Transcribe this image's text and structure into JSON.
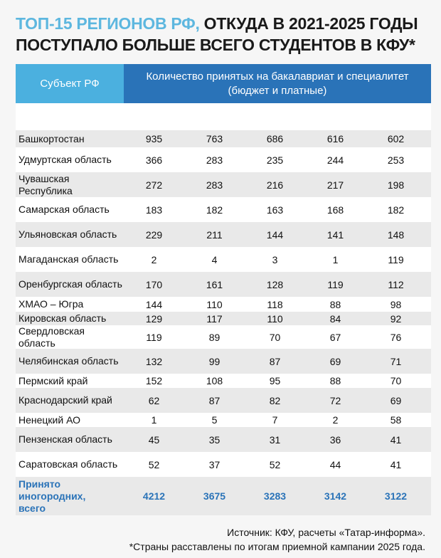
{
  "title": {
    "highlight": "ТОП-15 РЕГИОНОВ РФ,",
    "rest_line1": " ОТКУДА В 2021-2025 ГОДЫ",
    "line2": "ПОСТУПАЛО БОЛЬШЕ ВСЕГО СТУДЕНТОВ В КФУ*"
  },
  "table": {
    "header_subject": "Субъект РФ",
    "header_values": "Количество принятых на бакалавриат и специалитет (бюджет и платные)",
    "rows": [
      {
        "name": "Башкортостан",
        "values": [
          "935",
          "763",
          "686",
          "616",
          "602"
        ]
      },
      {
        "name": "Удмуртская область",
        "values": [
          "366",
          "283",
          "235",
          "244",
          "253"
        ]
      },
      {
        "name": "Чувашская Республика",
        "values": [
          "272",
          "283",
          "216",
          "217",
          "198"
        ]
      },
      {
        "name": "Самарская область",
        "values": [
          "183",
          "182",
          "163",
          "168",
          "182"
        ]
      },
      {
        "name": "Ульяновская область",
        "values": [
          "229",
          "211",
          "144",
          "141",
          "148"
        ]
      },
      {
        "name": "Магаданская область",
        "values": [
          "2",
          "4",
          "3",
          "1",
          "119"
        ]
      },
      {
        "name": "Оренбургская область",
        "values": [
          "170",
          "161",
          "128",
          "119",
          "112"
        ]
      },
      {
        "name": "ХМАО – Югра",
        "values": [
          "144",
          "110",
          "118",
          "88",
          "98"
        ]
      },
      {
        "name": "Кировская область",
        "values": [
          "129",
          "117",
          "110",
          "84",
          "92"
        ]
      },
      {
        "name": "Свердловская область",
        "values": [
          "119",
          "89",
          "70",
          "67",
          "76"
        ]
      },
      {
        "name": "Челябинская область",
        "values": [
          "132",
          "99",
          "87",
          "69",
          "71"
        ]
      },
      {
        "name": "Пермский край",
        "values": [
          "152",
          "108",
          "95",
          "88",
          "70"
        ]
      },
      {
        "name": "Краснодарский край",
        "values": [
          "62",
          "87",
          "82",
          "72",
          "69"
        ]
      },
      {
        "name": "Ненецкий АО",
        "values": [
          "1",
          "5",
          "7",
          "2",
          "58"
        ]
      },
      {
        "name": "Пензенская область",
        "values": [
          "45",
          "35",
          "31",
          "36",
          "41"
        ]
      },
      {
        "name": "Саратовская область",
        "values": [
          "52",
          "37",
          "52",
          "44",
          "41"
        ]
      }
    ],
    "total": {
      "name": "Принято иногородних, всего",
      "values": [
        "4212",
        "3675",
        "3283",
        "3142",
        "3122"
      ]
    }
  },
  "source": "Источник: КФУ, расчеты «Татар-информа».",
  "footnote": "*Страны расставлены по итогам приемной кампании 2025 года."
}
